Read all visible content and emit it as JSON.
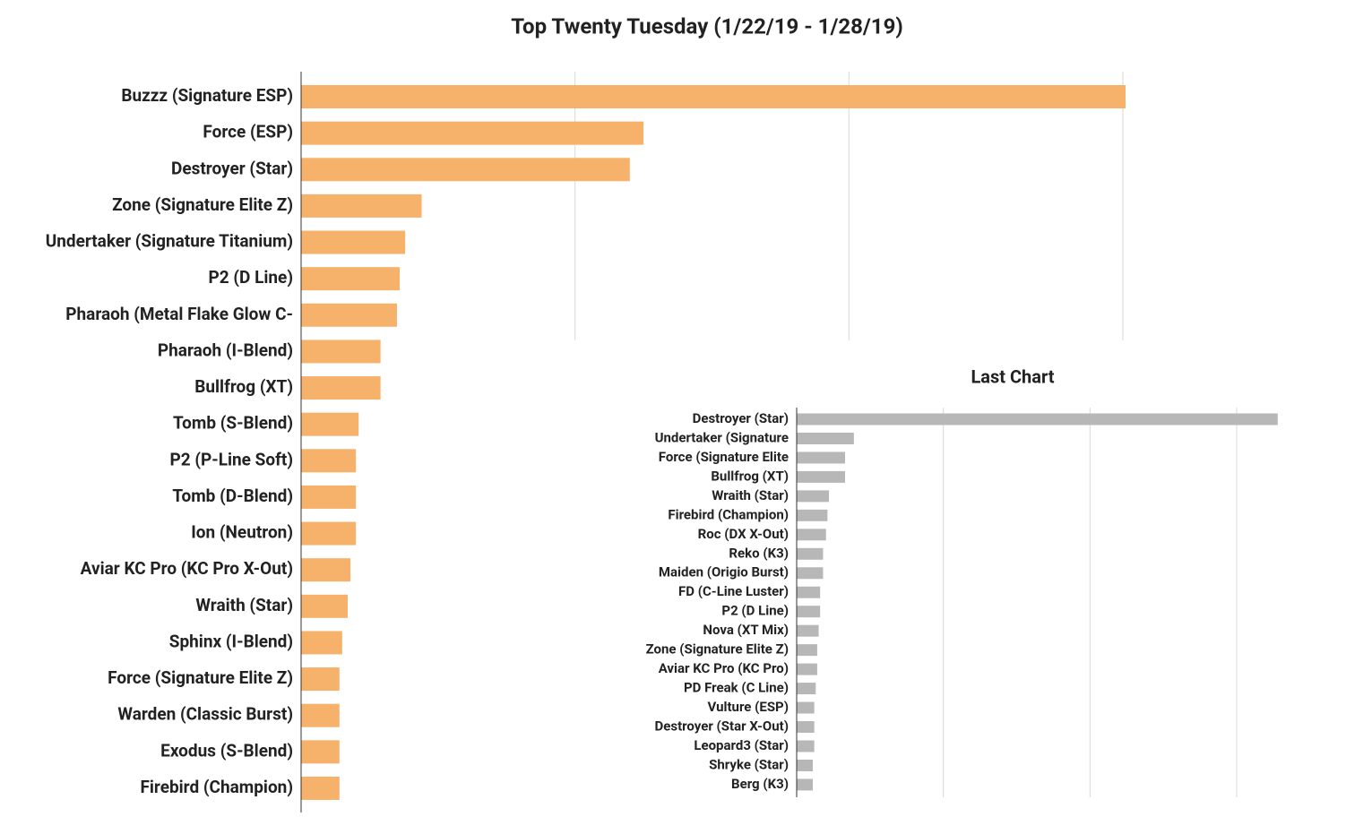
{
  "chart_data": [
    {
      "type": "bar",
      "orientation": "horizontal",
      "title": "Top Twenty Tuesday (1/22/19 - 1/28/19)",
      "categories": [
        "Buzzz (Signature ESP)",
        "Force (ESP)",
        "Destroyer (Star)",
        "Zone (Signature Elite Z)",
        "Undertaker (Signature Titanium)",
        "P2 (D Line)",
        "Pharaoh (Metal Flake Glow C-",
        "Pharaoh (I-Blend)",
        "Bullfrog (XT)",
        "Tomb (S-Blend)",
        "P2 (P-Line Soft)",
        "Tomb (D-Blend)",
        "Ion (Neutron)",
        "Aviar KC Pro (KC Pro X-Out)",
        "Wraith (Star)",
        "Sphinx (I-Blend)",
        "Force (Signature Elite Z)",
        "Warden (Classic Burst)",
        "Exodus (S-Blend)",
        "Firebird (Champion)"
      ],
      "values": [
        30.1,
        12.5,
        12.0,
        4.4,
        3.8,
        3.6,
        3.5,
        2.9,
        2.9,
        2.1,
        2.0,
        2.0,
        2.0,
        1.8,
        1.7,
        1.5,
        1.4,
        1.4,
        1.4,
        1.4
      ],
      "color": "#f6b26b",
      "xlim": [
        0,
        30
      ],
      "xticks": [
        10,
        20,
        30
      ],
      "grid": true
    },
    {
      "type": "bar",
      "orientation": "horizontal",
      "title": "Last Chart",
      "categories": [
        "Destroyer (Star)",
        "Undertaker (Signature",
        "Force (Signature Elite",
        "Bullfrog (XT)",
        "Wraith (Star)",
        "Firebird (Champion)",
        "Roc (DX X-Out)",
        "Reko (K3)",
        "Maiden (Origio Burst)",
        "FD (C-Line Luster)",
        "P2 (D Line)",
        "Nova (XT Mix)",
        "Zone (Signature Elite Z)",
        "Aviar KC Pro (KC Pro)",
        "PD Freak (C Line)",
        "Vulture (ESP)",
        "Destroyer (Star X-Out)",
        "Leopard3 (Star)",
        "Shryke (Star)",
        "Berg (K3)"
      ],
      "values": [
        32.8,
        3.9,
        3.3,
        3.3,
        2.2,
        2.1,
        2.0,
        1.8,
        1.8,
        1.6,
        1.6,
        1.5,
        1.4,
        1.4,
        1.3,
        1.2,
        1.2,
        1.2,
        1.1,
        1.1
      ],
      "color": "#b7b7b7",
      "xlim": [
        0,
        30
      ],
      "xticks": [
        10,
        20,
        30
      ],
      "grid": true
    }
  ]
}
